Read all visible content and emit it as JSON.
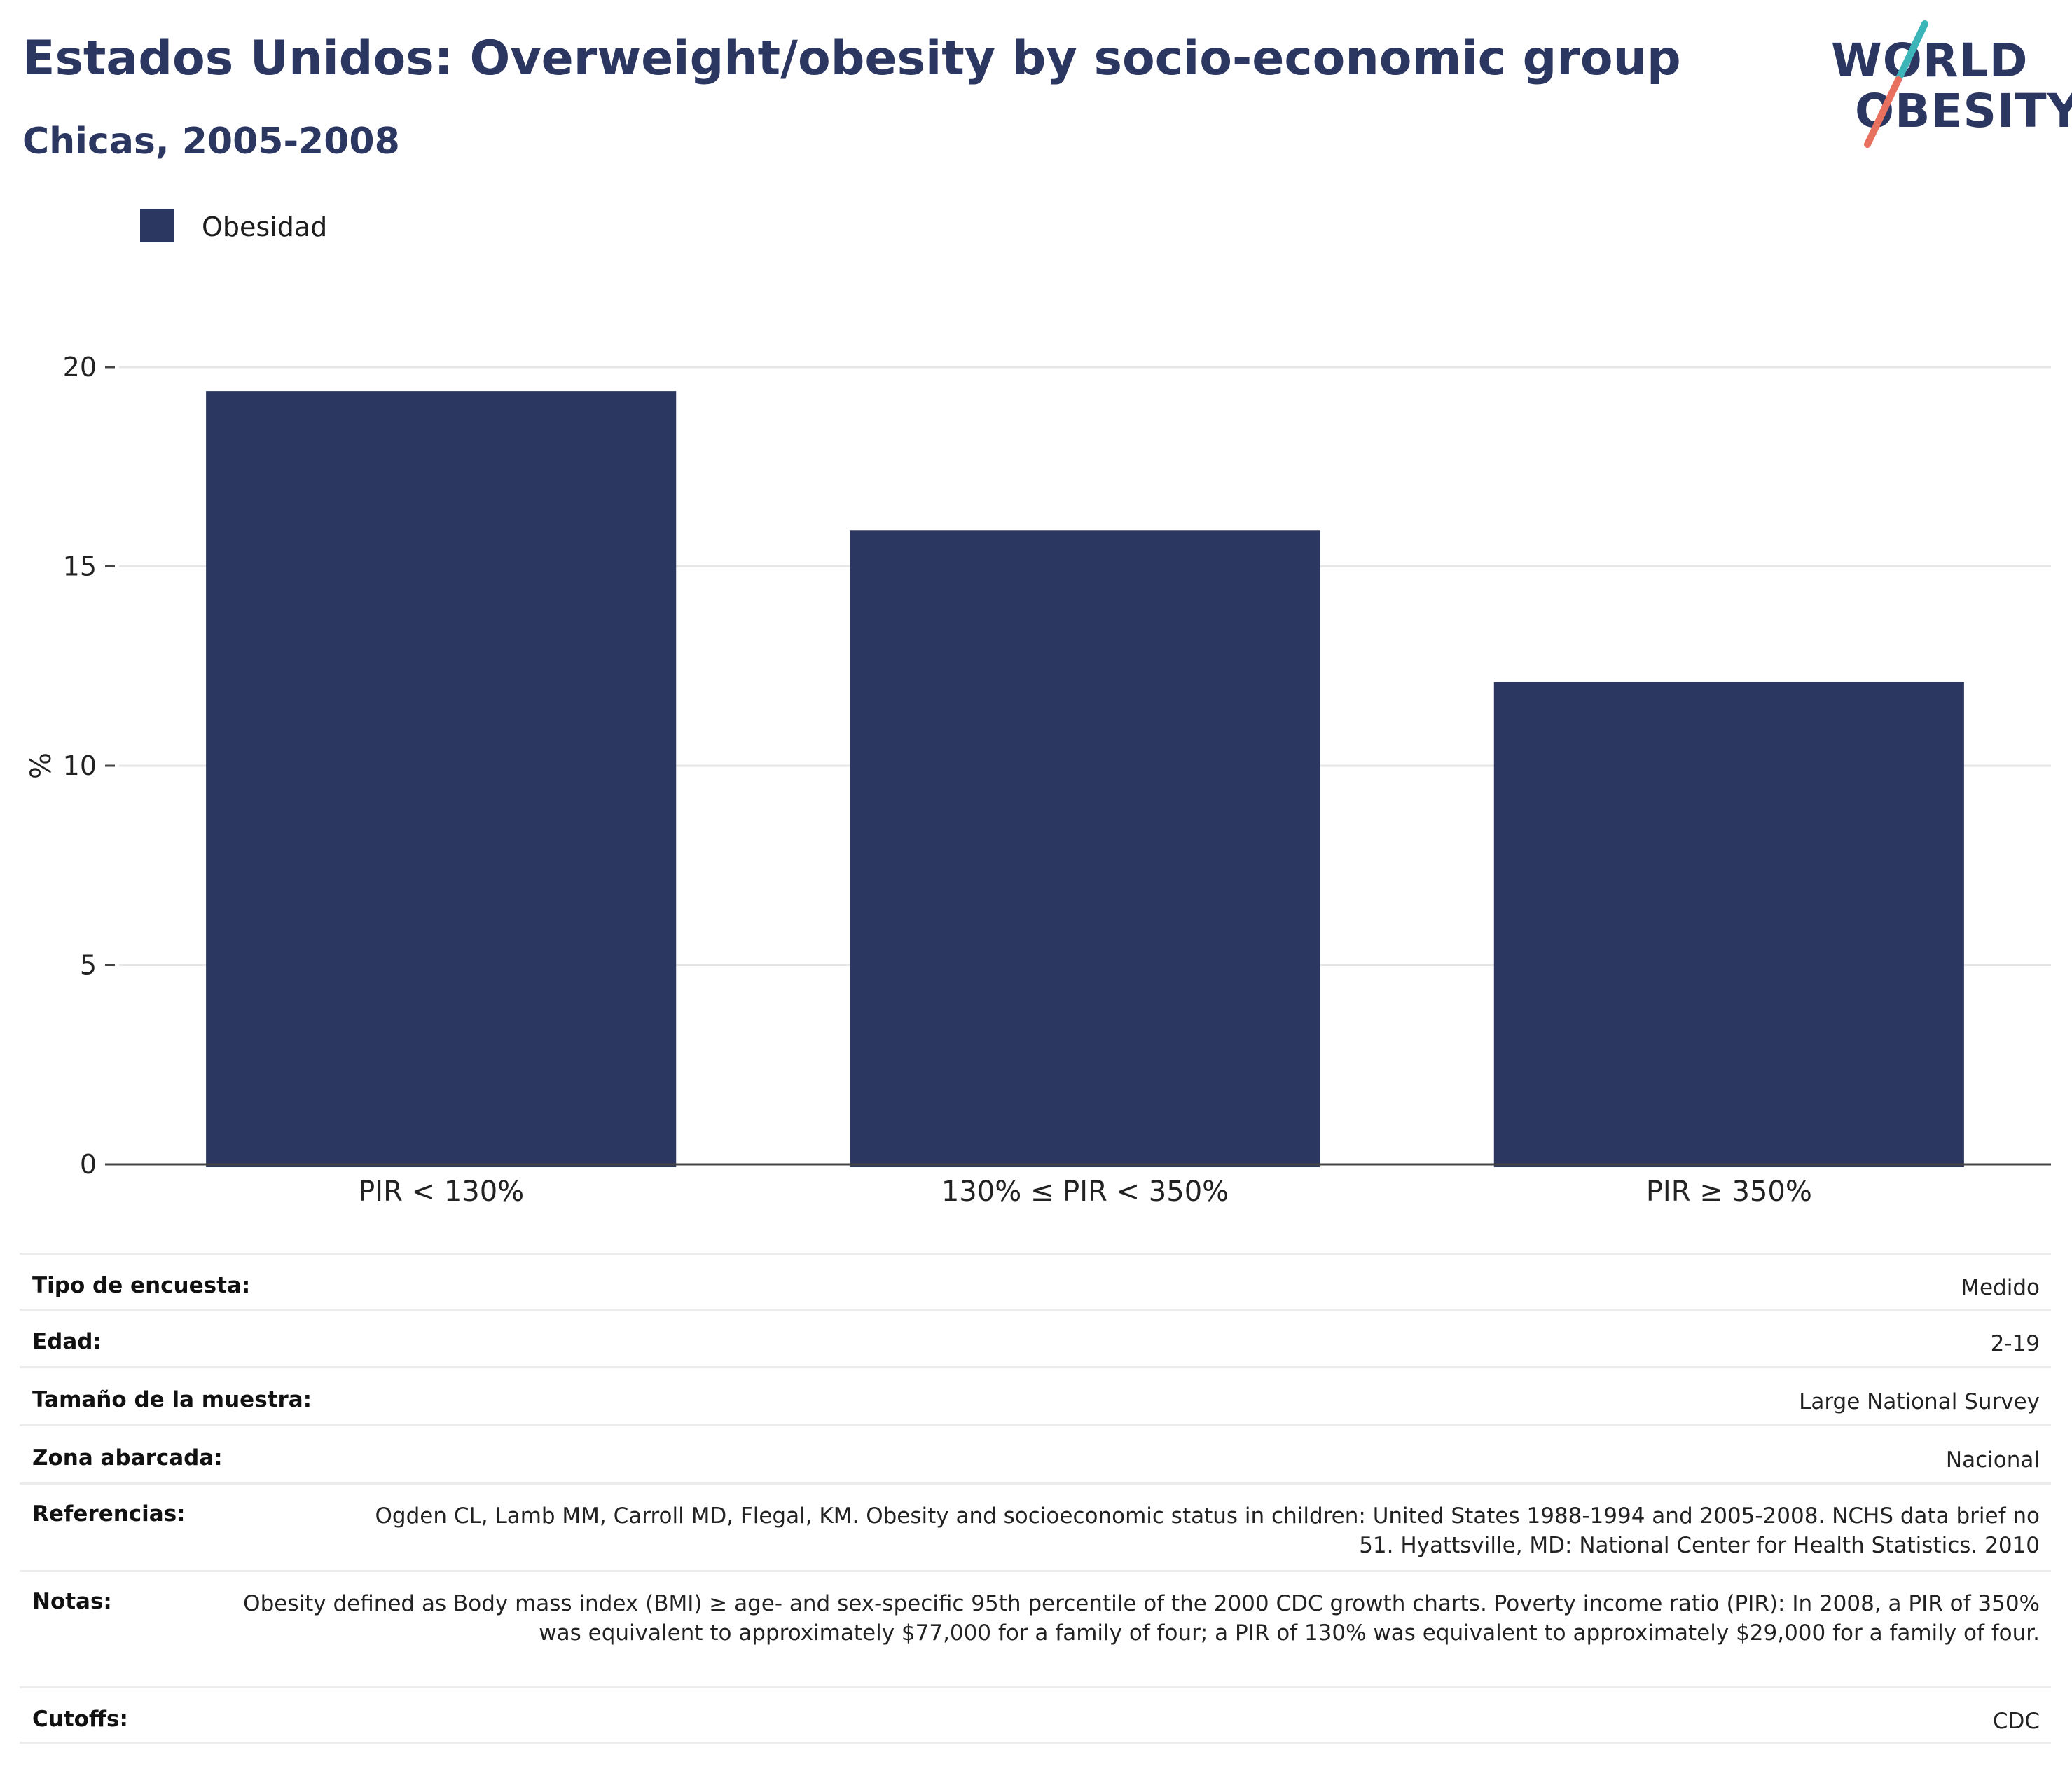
{
  "header": {
    "title": "Estados Unidos: Overweight/obesity by socio-economic group",
    "subtitle": "Chicas, 2005-2008"
  },
  "logo": {
    "line1": "WORLD",
    "line2": "OBESITY",
    "accent_teal": "#3cb5b9",
    "accent_coral": "#e8705f"
  },
  "legend": {
    "items": [
      {
        "label": "Obesidad",
        "color": "#2b3661"
      }
    ]
  },
  "chart_data": {
    "type": "bar",
    "categories": [
      "PIR < 130%",
      "130% ≤ PIR < 350%",
      "PIR ≥ 350%"
    ],
    "series": [
      {
        "name": "Obesidad",
        "color": "#2b3661",
        "values": [
          19.4,
          15.9,
          12.1
        ]
      }
    ],
    "ylabel": "%",
    "ylim": [
      0,
      20
    ],
    "yticks": [
      0,
      5,
      10,
      15,
      20
    ],
    "grid": true,
    "legend_position": "top-left"
  },
  "info": {
    "rows": [
      {
        "key": "Tipo de encuesta:",
        "value": "Medido"
      },
      {
        "key": "Edad:",
        "value": "2-19"
      },
      {
        "key": "Tamaño de la muestra:",
        "value": "Large National Survey"
      },
      {
        "key": "Zona abarcada:",
        "value": "Nacional"
      },
      {
        "key": "Referencias:",
        "value": "Ogden CL, Lamb MM, Carroll MD, Flegal, KM. Obesity and socioeconomic status in children: United States 1988-1994 and 2005-2008. NCHS data brief no 51. Hyattsville, MD: National Center for Health Statistics. 2010"
      },
      {
        "key": "Notas:",
        "value": "Obesity defined as Body mass index (BMI) ≥ age- and sex-specific 95th percentile of the 2000 CDC growth charts. Poverty income ratio (PIR): In 2008, a PIR of 350% was equivalent to approximately $77,000 for a family of four; a PIR of 130% was equivalent to approximately $29,000 for a family of four."
      },
      {
        "key": "Cutoffs:",
        "value": "CDC"
      }
    ]
  }
}
